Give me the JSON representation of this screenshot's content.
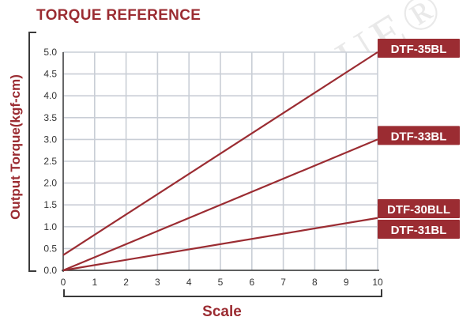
{
  "chart_data": {
    "type": "line",
    "title": "TORQUE REFERENCE",
    "xlabel": "Scale",
    "ylabel": "Output Torque(kgf-cm)",
    "xlim": [
      0,
      10
    ],
    "ylim": [
      0,
      5.0
    ],
    "x_ticks": [
      "0",
      "1",
      "2",
      "3",
      "4",
      "5",
      "6",
      "7",
      "8",
      "9",
      "10"
    ],
    "y_ticks": [
      "0.0",
      "0.5",
      "1.0",
      "1.5",
      "2.0",
      "2.5",
      "3.0",
      "3.5",
      "4.0",
      "4.5",
      "5.0"
    ],
    "grid": true,
    "series": [
      {
        "name": "DTF-35BL",
        "x": [
          0,
          10
        ],
        "y": [
          0.35,
          5.0
        ]
      },
      {
        "name": "DTF-33BL",
        "x": [
          0,
          10
        ],
        "y": [
          0.0,
          3.0
        ]
      },
      {
        "name": "DTF-30BLL",
        "x": [
          0,
          10
        ],
        "y": [
          0.0,
          1.2
        ]
      }
    ],
    "annotations": [
      "DTF-31BL"
    ],
    "watermark": "DR.TORQUE®",
    "colors": {
      "line": "#9b2c32",
      "label_bg": "#9b2c32",
      "label_text": "#ffffff",
      "grid": "#c9ced6",
      "title": "#9b2c32"
    }
  }
}
